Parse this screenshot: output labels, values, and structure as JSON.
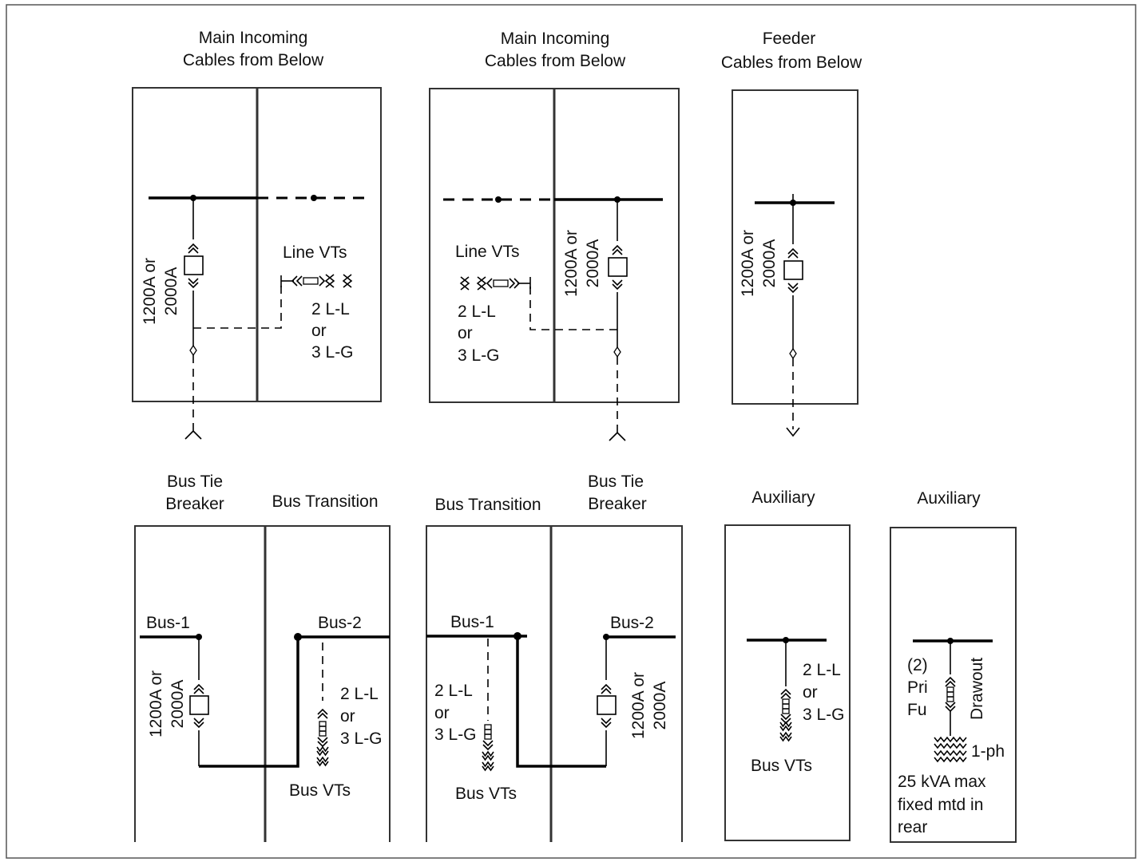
{
  "top": {
    "main1": {
      "title": [
        "Main Incoming",
        "Cables from Below"
      ],
      "rating": [
        "1200A or",
        "2000A"
      ],
      "vt_label": "Line VTs",
      "vt_options": [
        "2 L-L",
        "or",
        "3 L-G"
      ]
    },
    "main2": {
      "title": [
        "Main Incoming",
        "Cables from Below"
      ],
      "rating": [
        "1200A or",
        "2000A"
      ],
      "vt_label": "Line VTs",
      "vt_options": [
        "2 L-L",
        "or",
        "3 L-G"
      ]
    },
    "feeder": {
      "title": [
        "Feeder",
        "Cables from Below"
      ],
      "rating": [
        "1200A or",
        "2000A"
      ]
    }
  },
  "bottom": {
    "tie1": {
      "title": [
        "Bus Tie",
        "Breaker"
      ],
      "transition_title": "Bus Transition",
      "bus_a": "Bus-1",
      "bus_b": "Bus-2",
      "rating": [
        "1200A or",
        "2000A"
      ],
      "vt_options": [
        "2 L-L",
        "or",
        "3 L-G"
      ],
      "vt_label": "Bus VTs"
    },
    "tie2": {
      "transition_title": "Bus Transition",
      "title": [
        "Bus Tie",
        "Breaker"
      ],
      "bus_a": "Bus-1",
      "bus_b": "Bus-2",
      "rating": [
        "1200A or",
        "2000A"
      ],
      "vt_options": [
        "2 L-L",
        "or",
        "3 L-G"
      ],
      "vt_label": "Bus VTs"
    },
    "aux1": {
      "title": "Auxiliary",
      "vt_options": [
        "2 L-L",
        "or",
        "3 L-G"
      ],
      "vt_label": "Bus VTs"
    },
    "aux2": {
      "title": "Auxiliary",
      "fuse_label": [
        "(2)",
        "Pri",
        "Fu"
      ],
      "drawout": "Drawout",
      "phase": "1-ph",
      "note": [
        "25 kVA max",
        "fixed mtd in",
        "rear"
      ]
    }
  }
}
